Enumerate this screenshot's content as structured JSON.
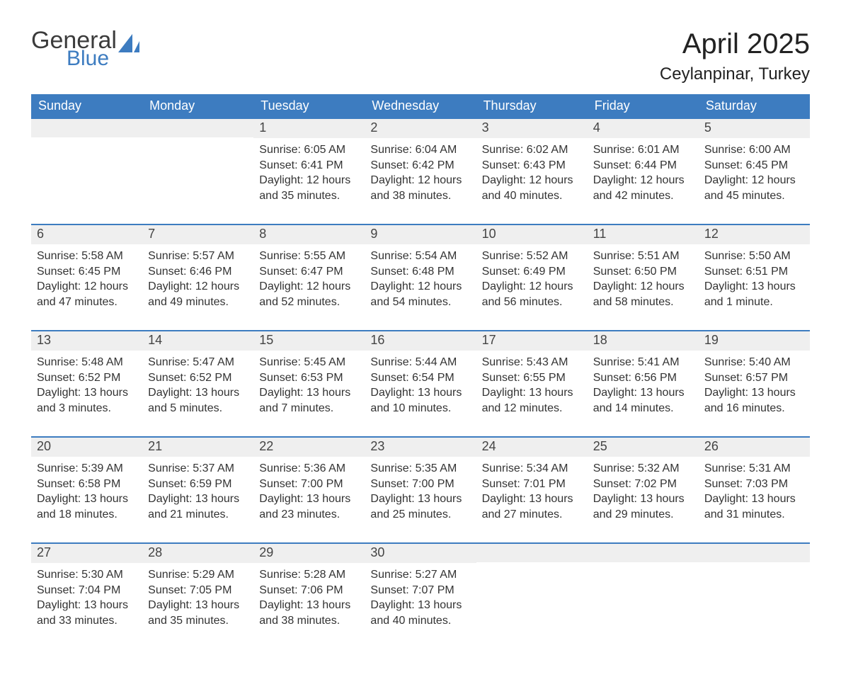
{
  "brand": {
    "word1": "General",
    "word2": "Blue"
  },
  "title": "April 2025",
  "location": "Ceylanpinar, Turkey",
  "colors": {
    "header_bg": "#3d7cc0",
    "header_text": "#ffffff",
    "daynum_bg": "#efefef",
    "border": "#3d7cc0",
    "text": "#333333",
    "background": "#ffffff"
  },
  "typography": {
    "title_fontsize": 40,
    "location_fontsize": 24,
    "weekday_fontsize": 18,
    "daynum_fontsize": 18,
    "body_fontsize": 16,
    "font_family": "Segoe UI"
  },
  "calendar": {
    "type": "table",
    "weekdays": [
      "Sunday",
      "Monday",
      "Tuesday",
      "Wednesday",
      "Thursday",
      "Friday",
      "Saturday"
    ],
    "weeks": [
      [
        null,
        null,
        {
          "day": "1",
          "sunrise": "Sunrise: 6:05 AM",
          "sunset": "Sunset: 6:41 PM",
          "daylight": "Daylight: 12 hours and 35 minutes."
        },
        {
          "day": "2",
          "sunrise": "Sunrise: 6:04 AM",
          "sunset": "Sunset: 6:42 PM",
          "daylight": "Daylight: 12 hours and 38 minutes."
        },
        {
          "day": "3",
          "sunrise": "Sunrise: 6:02 AM",
          "sunset": "Sunset: 6:43 PM",
          "daylight": "Daylight: 12 hours and 40 minutes."
        },
        {
          "day": "4",
          "sunrise": "Sunrise: 6:01 AM",
          "sunset": "Sunset: 6:44 PM",
          "daylight": "Daylight: 12 hours and 42 minutes."
        },
        {
          "day": "5",
          "sunrise": "Sunrise: 6:00 AM",
          "sunset": "Sunset: 6:45 PM",
          "daylight": "Daylight: 12 hours and 45 minutes."
        }
      ],
      [
        {
          "day": "6",
          "sunrise": "Sunrise: 5:58 AM",
          "sunset": "Sunset: 6:45 PM",
          "daylight": "Daylight: 12 hours and 47 minutes."
        },
        {
          "day": "7",
          "sunrise": "Sunrise: 5:57 AM",
          "sunset": "Sunset: 6:46 PM",
          "daylight": "Daylight: 12 hours and 49 minutes."
        },
        {
          "day": "8",
          "sunrise": "Sunrise: 5:55 AM",
          "sunset": "Sunset: 6:47 PM",
          "daylight": "Daylight: 12 hours and 52 minutes."
        },
        {
          "day": "9",
          "sunrise": "Sunrise: 5:54 AM",
          "sunset": "Sunset: 6:48 PM",
          "daylight": "Daylight: 12 hours and 54 minutes."
        },
        {
          "day": "10",
          "sunrise": "Sunrise: 5:52 AM",
          "sunset": "Sunset: 6:49 PM",
          "daylight": "Daylight: 12 hours and 56 minutes."
        },
        {
          "day": "11",
          "sunrise": "Sunrise: 5:51 AM",
          "sunset": "Sunset: 6:50 PM",
          "daylight": "Daylight: 12 hours and 58 minutes."
        },
        {
          "day": "12",
          "sunrise": "Sunrise: 5:50 AM",
          "sunset": "Sunset: 6:51 PM",
          "daylight": "Daylight: 13 hours and 1 minute."
        }
      ],
      [
        {
          "day": "13",
          "sunrise": "Sunrise: 5:48 AM",
          "sunset": "Sunset: 6:52 PM",
          "daylight": "Daylight: 13 hours and 3 minutes."
        },
        {
          "day": "14",
          "sunrise": "Sunrise: 5:47 AM",
          "sunset": "Sunset: 6:52 PM",
          "daylight": "Daylight: 13 hours and 5 minutes."
        },
        {
          "day": "15",
          "sunrise": "Sunrise: 5:45 AM",
          "sunset": "Sunset: 6:53 PM",
          "daylight": "Daylight: 13 hours and 7 minutes."
        },
        {
          "day": "16",
          "sunrise": "Sunrise: 5:44 AM",
          "sunset": "Sunset: 6:54 PM",
          "daylight": "Daylight: 13 hours and 10 minutes."
        },
        {
          "day": "17",
          "sunrise": "Sunrise: 5:43 AM",
          "sunset": "Sunset: 6:55 PM",
          "daylight": "Daylight: 13 hours and 12 minutes."
        },
        {
          "day": "18",
          "sunrise": "Sunrise: 5:41 AM",
          "sunset": "Sunset: 6:56 PM",
          "daylight": "Daylight: 13 hours and 14 minutes."
        },
        {
          "day": "19",
          "sunrise": "Sunrise: 5:40 AM",
          "sunset": "Sunset: 6:57 PM",
          "daylight": "Daylight: 13 hours and 16 minutes."
        }
      ],
      [
        {
          "day": "20",
          "sunrise": "Sunrise: 5:39 AM",
          "sunset": "Sunset: 6:58 PM",
          "daylight": "Daylight: 13 hours and 18 minutes."
        },
        {
          "day": "21",
          "sunrise": "Sunrise: 5:37 AM",
          "sunset": "Sunset: 6:59 PM",
          "daylight": "Daylight: 13 hours and 21 minutes."
        },
        {
          "day": "22",
          "sunrise": "Sunrise: 5:36 AM",
          "sunset": "Sunset: 7:00 PM",
          "daylight": "Daylight: 13 hours and 23 minutes."
        },
        {
          "day": "23",
          "sunrise": "Sunrise: 5:35 AM",
          "sunset": "Sunset: 7:00 PM",
          "daylight": "Daylight: 13 hours and 25 minutes."
        },
        {
          "day": "24",
          "sunrise": "Sunrise: 5:34 AM",
          "sunset": "Sunset: 7:01 PM",
          "daylight": "Daylight: 13 hours and 27 minutes."
        },
        {
          "day": "25",
          "sunrise": "Sunrise: 5:32 AM",
          "sunset": "Sunset: 7:02 PM",
          "daylight": "Daylight: 13 hours and 29 minutes."
        },
        {
          "day": "26",
          "sunrise": "Sunrise: 5:31 AM",
          "sunset": "Sunset: 7:03 PM",
          "daylight": "Daylight: 13 hours and 31 minutes."
        }
      ],
      [
        {
          "day": "27",
          "sunrise": "Sunrise: 5:30 AM",
          "sunset": "Sunset: 7:04 PM",
          "daylight": "Daylight: 13 hours and 33 minutes."
        },
        {
          "day": "28",
          "sunrise": "Sunrise: 5:29 AM",
          "sunset": "Sunset: 7:05 PM",
          "daylight": "Daylight: 13 hours and 35 minutes."
        },
        {
          "day": "29",
          "sunrise": "Sunrise: 5:28 AM",
          "sunset": "Sunset: 7:06 PM",
          "daylight": "Daylight: 13 hours and 38 minutes."
        },
        {
          "day": "30",
          "sunrise": "Sunrise: 5:27 AM",
          "sunset": "Sunset: 7:07 PM",
          "daylight": "Daylight: 13 hours and 40 minutes."
        },
        null,
        null,
        null
      ]
    ]
  }
}
